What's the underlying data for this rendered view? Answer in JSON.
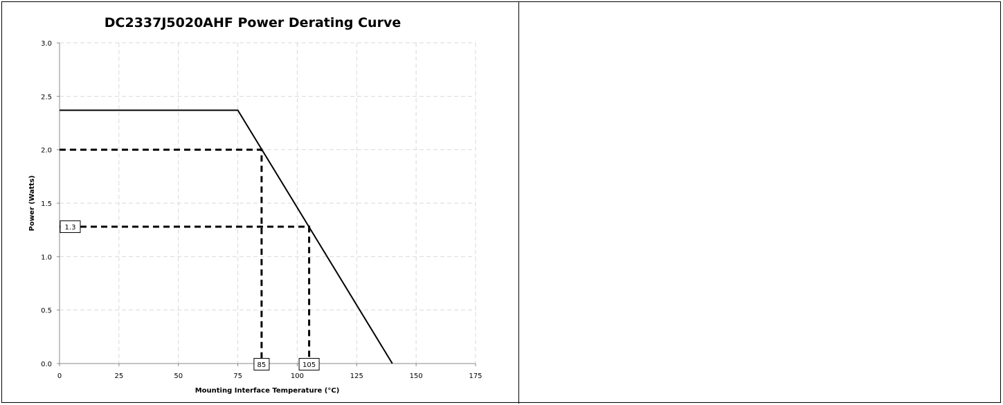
{
  "chart_data": {
    "type": "line",
    "title": "DC2337J5020AHF Power Derating Curve",
    "xlabel": "Mounting Interface Temperature (°C)",
    "ylabel": "Power (Watts)",
    "xlim": [
      0,
      175
    ],
    "ylim": [
      0,
      3.0
    ],
    "x_ticks": [
      0,
      25,
      50,
      75,
      100,
      125,
      150,
      175
    ],
    "y_ticks": [
      0.0,
      0.5,
      1.0,
      1.5,
      2.0,
      2.5,
      3.0
    ],
    "x_tick_labels": [
      "0",
      "25",
      "50",
      "75",
      "100",
      "125",
      "150",
      "175"
    ],
    "y_tick_labels": [
      "0.0",
      "0.5",
      "1.0",
      "1.5",
      "2.0",
      "2.5",
      "3.0"
    ],
    "grid": true,
    "series": [
      {
        "x": [
          0,
          75,
          140
        ],
        "y": [
          2.37,
          2.37,
          0.0
        ]
      }
    ],
    "reference_lines": [
      {
        "points": [
          [
            0,
            2.0
          ],
          [
            85,
            2.0
          ],
          [
            85,
            0
          ]
        ]
      },
      {
        "points": [
          [
            0,
            1.28
          ],
          [
            105,
            1.28
          ],
          [
            105,
            0
          ]
        ]
      }
    ],
    "annotations": [
      {
        "text": "1.3",
        "x": 0,
        "y": 1.28,
        "anchor": "left"
      },
      {
        "text": "85",
        "x": 85,
        "y": 0,
        "anchor": "bottom"
      },
      {
        "text": "105",
        "x": 105,
        "y": 0,
        "anchor": "bottom"
      }
    ]
  }
}
